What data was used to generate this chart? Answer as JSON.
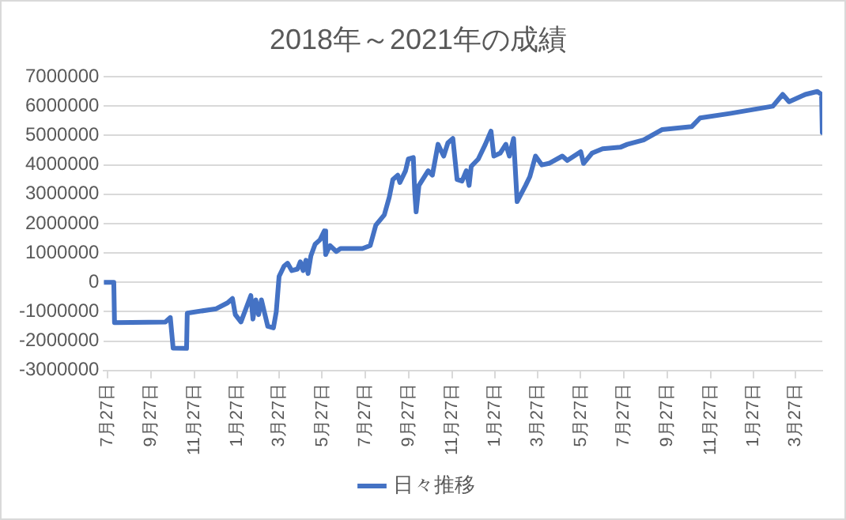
{
  "chart_data": {
    "type": "line",
    "title": "2018年～2021年の成績",
    "legend": "bottom",
    "grid": "y",
    "marker": "none",
    "line_style": "solid",
    "x": [
      "2018-07-22",
      "2018-08-05",
      "2018-08-06",
      "2018-10-17",
      "2018-10-24",
      "2018-10-28",
      "2018-11-16",
      "2018-11-17",
      "2018-12-28",
      "2019-01-13",
      "2019-01-20",
      "2019-01-24",
      "2019-02-01",
      "2019-02-08",
      "2019-02-15",
      "2019-02-18",
      "2019-02-22",
      "2019-02-26",
      "2019-03-02",
      "2019-03-06",
      "2019-03-11",
      "2019-03-19",
      "2019-03-23",
      "2019-03-27",
      "2019-04-03",
      "2019-04-08",
      "2019-04-14",
      "2019-04-22",
      "2019-04-26",
      "2019-04-30",
      "2019-05-04",
      "2019-05-07",
      "2019-05-11",
      "2019-05-17",
      "2019-05-24",
      "2019-05-30",
      "2019-06-01",
      "2019-06-07",
      "2019-06-16",
      "2019-06-22",
      "2019-07-23",
      "2019-08-03",
      "2019-08-11",
      "2019-08-23",
      "2019-08-30",
      "2019-09-04",
      "2019-09-11",
      "2019-09-14",
      "2019-09-22",
      "2019-09-26",
      "2019-10-03",
      "2019-10-05",
      "2019-10-07",
      "2019-10-11",
      "2019-10-24",
      "2019-10-30",
      "2019-11-07",
      "2019-11-15",
      "2019-11-21",
      "2019-11-28",
      "2019-12-04",
      "2019-12-11",
      "2019-12-17",
      "2019-12-21",
      "2019-12-24",
      "2020-01-03",
      "2020-01-13",
      "2020-01-21",
      "2020-01-25",
      "2020-02-03",
      "2020-02-11",
      "2020-02-16",
      "2020-02-22",
      "2020-02-27",
      "2020-03-10",
      "2020-03-16",
      "2020-03-24",
      "2020-04-02",
      "2020-04-12",
      "2020-05-01",
      "2020-05-08",
      "2020-05-27",
      "2020-05-31",
      "2020-06-12",
      "2020-06-27",
      "2020-07-22",
      "2020-08-01",
      "2020-08-24",
      "2020-09-19",
      "2020-10-31",
      "2020-11-12",
      "2020-12-24",
      "2021-02-23",
      "2021-03-09",
      "2021-03-18",
      "2021-04-10",
      "2021-04-27",
      "2021-05-03",
      "2021-05-04"
    ],
    "series": [
      {
        "name": "日々推移",
        "color": "#4472c4",
        "values": [
          0,
          0,
          -1370000,
          -1350000,
          -1200000,
          -2240000,
          -2250000,
          -1050000,
          -900000,
          -700000,
          -550000,
          -1100000,
          -1350000,
          -900000,
          -450000,
          -1250000,
          -600000,
          -1100000,
          -600000,
          -1000000,
          -1500000,
          -1550000,
          -1000000,
          200000,
          550000,
          650000,
          400000,
          450000,
          700000,
          400000,
          750000,
          300000,
          900000,
          1300000,
          1450000,
          1750000,
          950000,
          1250000,
          1050000,
          1150000,
          1150000,
          1250000,
          1950000,
          2300000,
          2900000,
          3500000,
          3650000,
          3400000,
          3800000,
          4200000,
          4250000,
          3100000,
          2400000,
          3300000,
          3800000,
          3650000,
          4700000,
          4300000,
          4750000,
          4900000,
          3500000,
          3450000,
          3800000,
          3300000,
          3950000,
          4200000,
          4700000,
          5150000,
          4300000,
          4400000,
          4700000,
          4300000,
          4900000,
          2750000,
          3300000,
          3600000,
          4300000,
          4000000,
          4050000,
          4300000,
          4150000,
          4450000,
          4050000,
          4400000,
          4550000,
          4600000,
          4700000,
          4850000,
          5200000,
          5300000,
          5600000,
          5750000,
          6000000,
          6400000,
          6150000,
          6400000,
          6500000,
          6400000,
          5100000
        ]
      }
    ],
    "xlim": [
      "2018-07-22",
      "2021-05-04"
    ],
    "xticks": [
      {
        "value": "2018-07-27",
        "label": "7月27日"
      },
      {
        "value": "2018-09-27",
        "label": "9月27日"
      },
      {
        "value": "2018-11-27",
        "label": "11月27日"
      },
      {
        "value": "2019-01-27",
        "label": "1月27日"
      },
      {
        "value": "2019-03-27",
        "label": "3月27日"
      },
      {
        "value": "2019-05-27",
        "label": "5月27日"
      },
      {
        "value": "2019-07-27",
        "label": "7月27日"
      },
      {
        "value": "2019-09-27",
        "label": "9月27日"
      },
      {
        "value": "2019-11-27",
        "label": "11月27日"
      },
      {
        "value": "2020-01-27",
        "label": "1月27日"
      },
      {
        "value": "2020-03-27",
        "label": "3月27日"
      },
      {
        "value": "2020-05-27",
        "label": "5月27日"
      },
      {
        "value": "2020-07-27",
        "label": "7月27日"
      },
      {
        "value": "2020-09-27",
        "label": "9月27日"
      },
      {
        "value": "2020-11-27",
        "label": "11月27日"
      },
      {
        "value": "2021-01-27",
        "label": "1月27日"
      },
      {
        "value": "2021-03-27",
        "label": "3月27日"
      }
    ],
    "ylim": [
      -3000000,
      7000000
    ],
    "yticks": [
      -3000000,
      -2000000,
      -1000000,
      0,
      1000000,
      2000000,
      3000000,
      4000000,
      5000000,
      6000000,
      7000000
    ]
  }
}
